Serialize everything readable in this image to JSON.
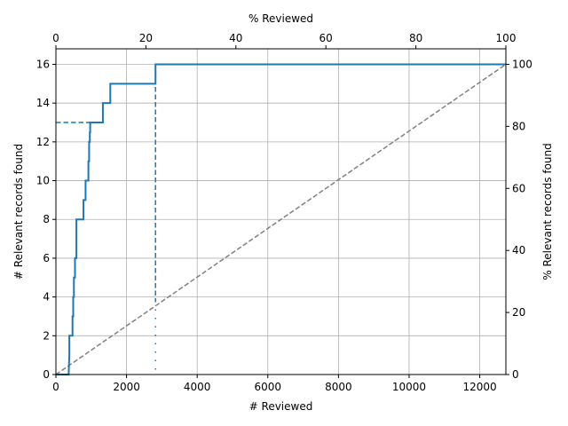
{
  "chart_data": {
    "type": "line",
    "title": "",
    "xlabel": "# Reviewed",
    "ylabel": "# Relevant records found",
    "x2label": "% Reviewed",
    "y2label": "% Relevant records found",
    "xlim": [
      0,
      12740
    ],
    "ylim": [
      0,
      16.8
    ],
    "x2lim": [
      0,
      100
    ],
    "y2lim": [
      0,
      105
    ],
    "grid": true,
    "x_ticks": [
      0,
      2000,
      4000,
      6000,
      8000,
      10000,
      12000
    ],
    "y_ticks": [
      0,
      2,
      4,
      6,
      8,
      10,
      12,
      14,
      16
    ],
    "x2_ticks": [
      0,
      20,
      40,
      60,
      80,
      100
    ],
    "y2_ticks": [
      0,
      20,
      40,
      60,
      80,
      100
    ],
    "colors": {
      "recall": "#1f77b4",
      "random": "#808080",
      "grid": "#b0b0b0"
    },
    "series": [
      {
        "style": "solid",
        "x": [
          0,
          360,
          380,
          380,
          470,
          470,
          490,
          490,
          510,
          510,
          540,
          540,
          580,
          580,
          780,
          780,
          840,
          840,
          920,
          920,
          940,
          940,
          960,
          960,
          970,
          970,
          980,
          980,
          1330,
          1330,
          1540,
          1540,
          2820,
          2820,
          12740
        ],
        "y": [
          0,
          0,
          1,
          2,
          2,
          3,
          3,
          4,
          4,
          5,
          5,
          6,
          6,
          8,
          8,
          9,
          9,
          10,
          10,
          11,
          11,
          12,
          12,
          12.5,
          12.5,
          13,
          13,
          13,
          13,
          14,
          14,
          15,
          15,
          16,
          16
        ]
      },
      {
        "style": "dashed",
        "x": [
          0,
          0,
          12740
        ],
        "y": [
          0,
          0,
          16
        ]
      }
    ],
    "markers": [
      {
        "style": "dashed",
        "x": [
          0,
          980
        ],
        "y": [
          13,
          13
        ]
      },
      {
        "style": "dashed",
        "x": [
          2820,
          2820
        ],
        "y": [
          16,
          3.8
        ]
      },
      {
        "style": "dotted",
        "x": [
          2820,
          2820
        ],
        "y": [
          3.8,
          0
        ]
      }
    ]
  }
}
